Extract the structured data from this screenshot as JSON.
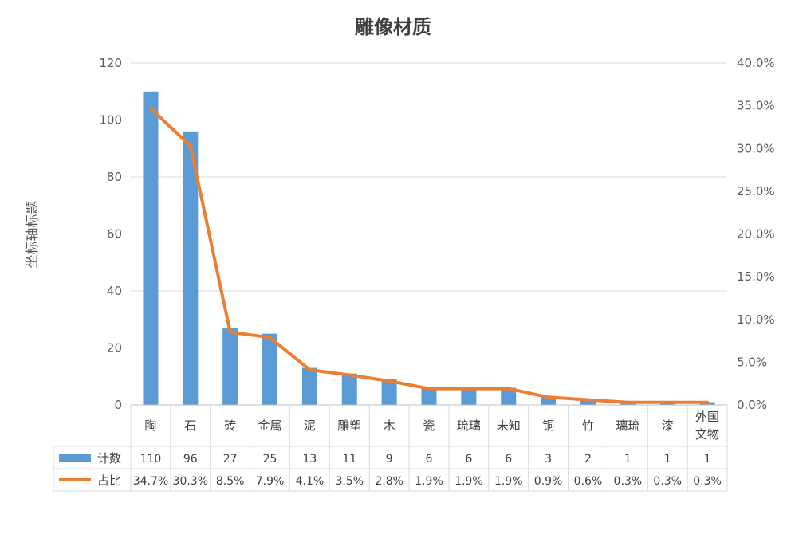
{
  "chart_data": {
    "type": "bar",
    "title": "雕像材质",
    "ylabel": "坐标轴标题",
    "categories": [
      "陶",
      "石",
      "砖",
      "金属",
      "泥",
      "雕塑",
      "木",
      "瓷",
      "琉璃",
      "未知",
      "铜",
      "竹",
      "璃琉",
      "漆",
      "外国文物"
    ],
    "category_lines": [
      [
        "陶"
      ],
      [
        "石"
      ],
      [
        "砖"
      ],
      [
        "金属"
      ],
      [
        "泥"
      ],
      [
        "雕塑"
      ],
      [
        "木"
      ],
      [
        "瓷"
      ],
      [
        "琉璃"
      ],
      [
        "未知"
      ],
      [
        "铜"
      ],
      [
        "竹"
      ],
      [
        "璃琉"
      ],
      [
        "漆"
      ],
      [
        "外国",
        "文物"
      ]
    ],
    "series": [
      {
        "name": "计数",
        "type": "bar",
        "axis": "left",
        "color": "#5b9bd5",
        "values": [
          110,
          96,
          27,
          25,
          13,
          11,
          9,
          6,
          6,
          6,
          3,
          2,
          1,
          1,
          1
        ],
        "labels": [
          "110",
          "96",
          "27",
          "25",
          "13",
          "11",
          "9",
          "6",
          "6",
          "6",
          "3",
          "2",
          "1",
          "1",
          "1"
        ]
      },
      {
        "name": "占比",
        "type": "line",
        "axis": "right",
        "color": "#ed7d31",
        "values": [
          34.7,
          30.3,
          8.5,
          7.9,
          4.1,
          3.5,
          2.8,
          1.9,
          1.9,
          1.9,
          0.9,
          0.6,
          0.3,
          0.3,
          0.3
        ],
        "labels": [
          "34.7%",
          "30.3%",
          "8.5%",
          "7.9%",
          "4.1%",
          "3.5%",
          "2.8%",
          "1.9%",
          "1.9%",
          "1.9%",
          "0.9%",
          "0.6%",
          "0.3%",
          "0.3%",
          "0.3%"
        ]
      }
    ],
    "ylim_left": [
      0,
      120
    ],
    "yticks_left": [
      "0",
      "20",
      "40",
      "60",
      "80",
      "100",
      "120"
    ],
    "ylim_right": [
      0,
      40
    ],
    "yticks_right": [
      "0.0%",
      "5.0%",
      "10.0%",
      "15.0%",
      "20.0%",
      "25.0%",
      "30.0%",
      "35.0%",
      "40.0%"
    ],
    "grid": true,
    "legend": "data-table"
  }
}
